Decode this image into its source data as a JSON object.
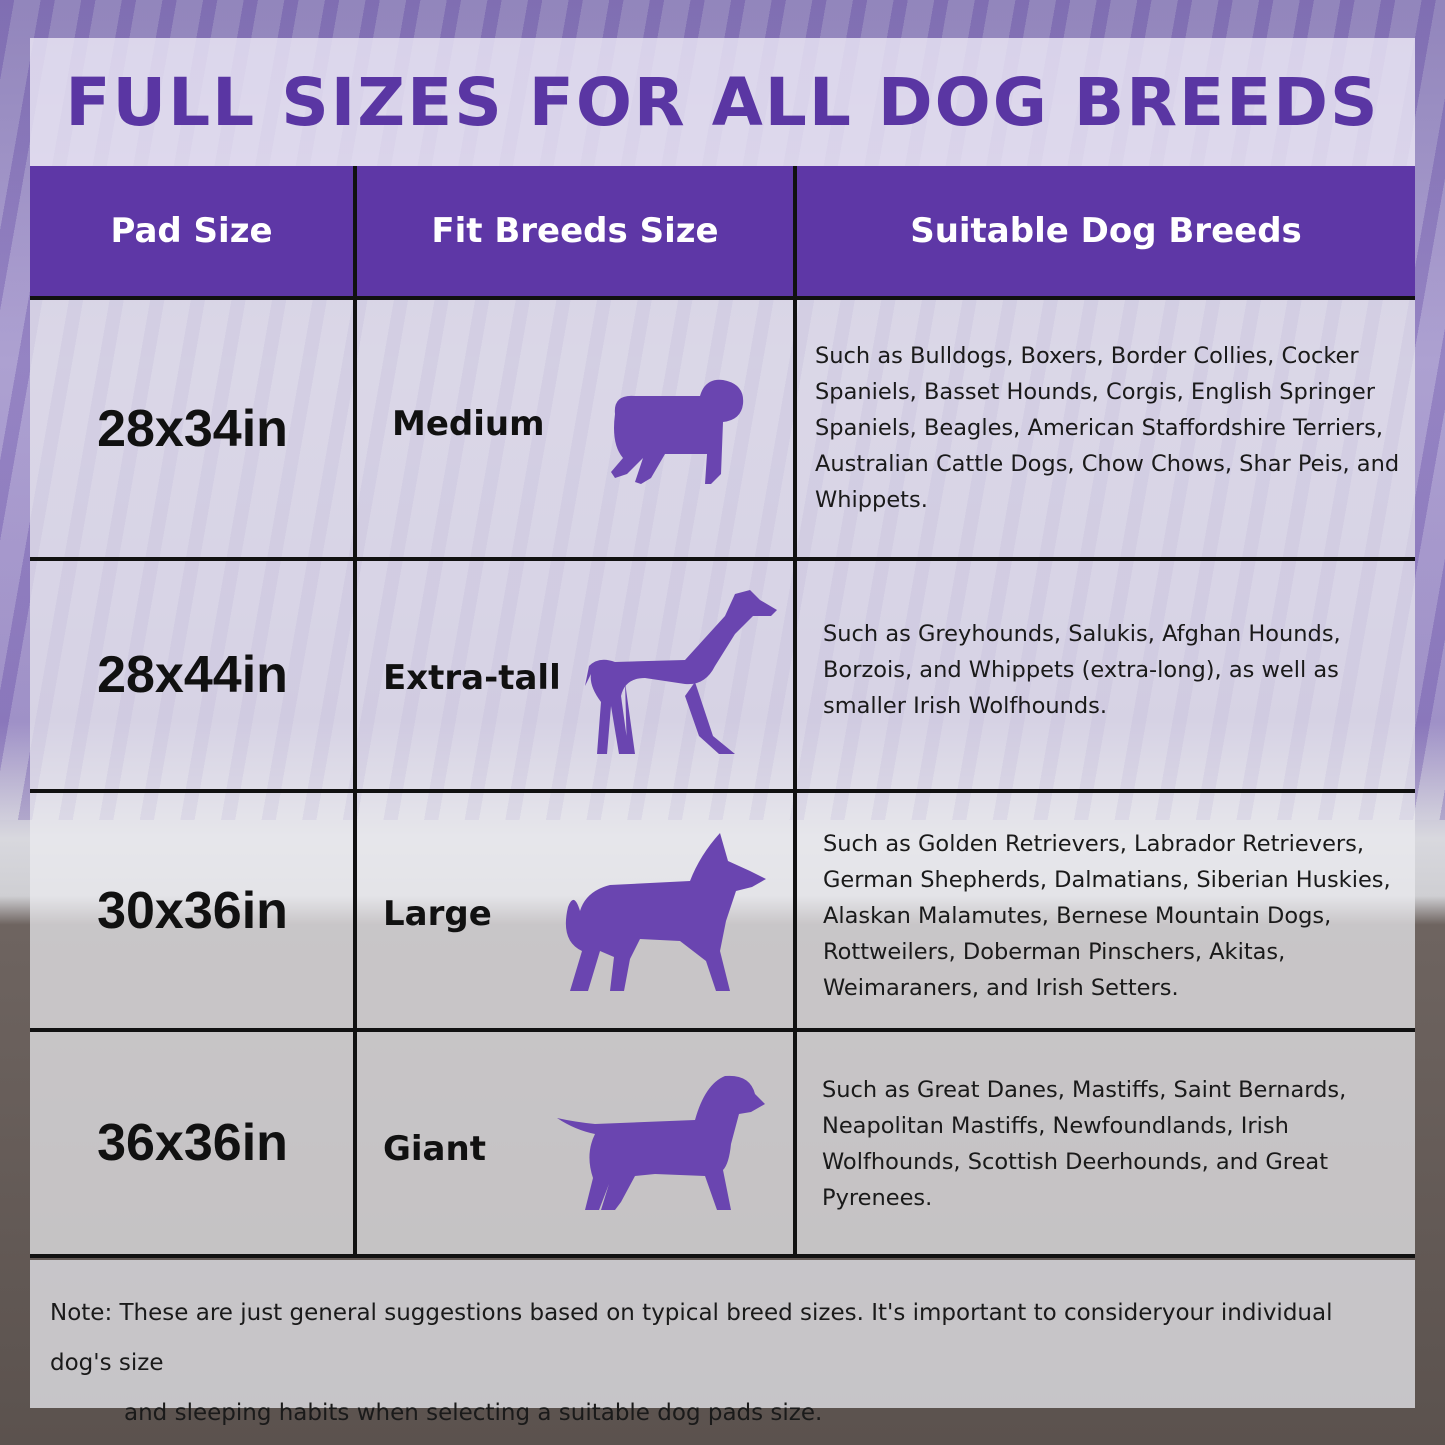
{
  "title": "FULL SIZES FOR ALL DOG BREEDS",
  "headers": [
    "Pad Size",
    "Fit Breeds Size",
    "Suitable Dog Breeds"
  ],
  "rows": [
    {
      "pad_size": "28x34in",
      "fit": "Medium",
      "icon": "pug-silhouette-icon",
      "breeds": "Such as Bulldogs, Boxers, Border Collies, Cocker Spaniels, Basset Hounds, Corgis, English Springer Spaniels, Beagles, American Staffordshire Terriers, Australian Cattle Dogs, Chow Chows, Shar Peis, and Whippets."
    },
    {
      "pad_size": "28x44in",
      "fit": "Extra-tall",
      "icon": "greyhound-silhouette-icon",
      "breeds": "Such as Greyhounds, Salukis, Afghan Hounds, Borzois, and Whippets (extra-long), as well as smaller Irish Wolfhounds."
    },
    {
      "pad_size": "30x36in",
      "fit": "Large",
      "icon": "shepherd-silhouette-icon",
      "breeds": "Such as Golden Retrievers, Labrador Retrievers, German Shepherds, Dalmatians, Siberian Huskies, Alaskan Malamutes, Bernese Mountain Dogs, Rottweilers, Doberman Pinschers, Akitas, Weimaraners, and Irish Setters."
    },
    {
      "pad_size": "36x36in",
      "fit": "Giant",
      "icon": "setter-silhouette-icon",
      "breeds": "Such as Great Danes, Mastiffs, Saint Bernards, Neapolitan Mastiffs, Newfoundlands, Irish Wolfhounds, Scottish Deerhounds, and Great Pyrenees."
    }
  ],
  "note": {
    "line1": "Note: These are just general suggestions based on typical breed sizes. It's important to consideryour individual dog's size",
    "line2": "and sleeping habits when selecting a suitable dog pads size."
  },
  "colors": {
    "accent": "#5e37a6",
    "title": "#5a36a3",
    "silhouette": "#6a45b0"
  }
}
